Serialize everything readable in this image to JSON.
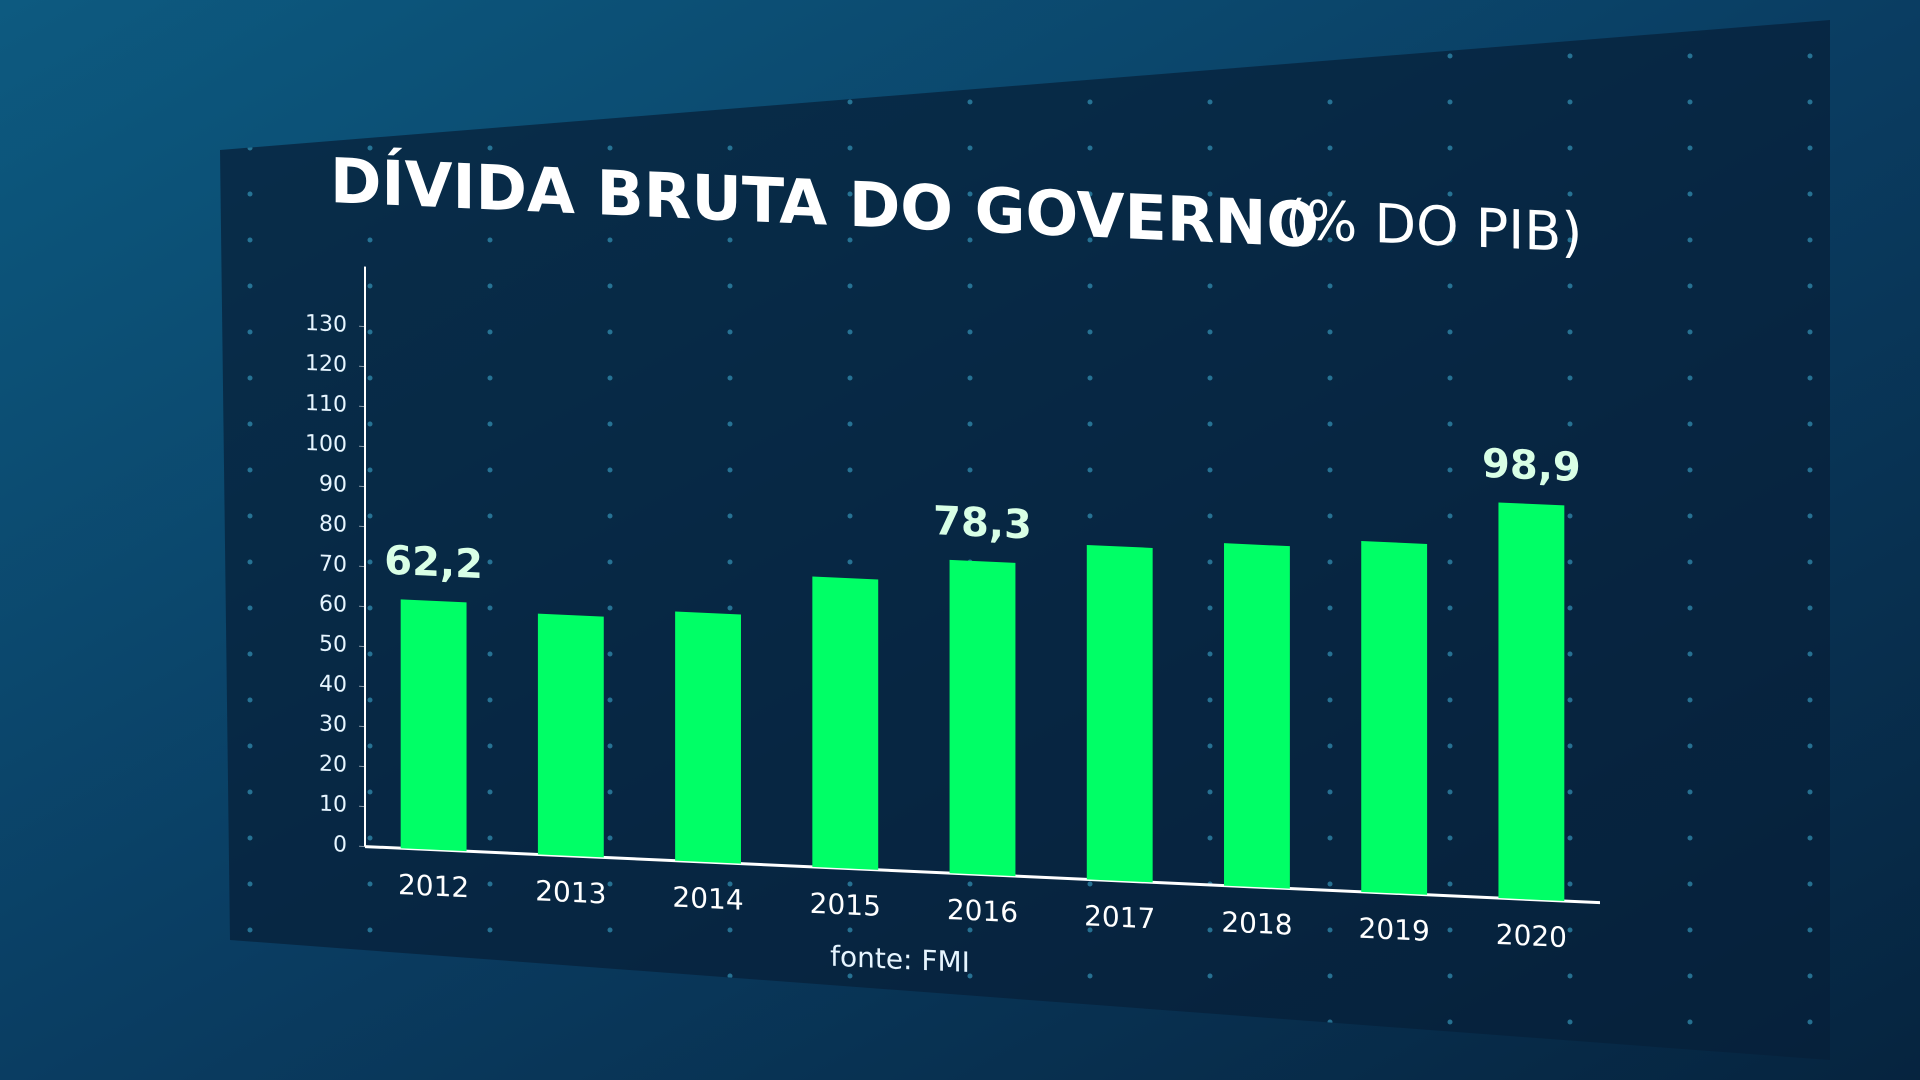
{
  "chart_data": {
    "type": "bar",
    "title": "DÍVIDA BRUTA DO GOVERNO",
    "subtitle": "(% DO PIB)",
    "source": "fonte: FMI",
    "categories": [
      "2012",
      "2013",
      "2014",
      "2015",
      "2016",
      "2017",
      "2018",
      "2019",
      "2020"
    ],
    "values": [
      62.2,
      60.2,
      62.3,
      72.6,
      78.3,
      83.6,
      85.6,
      87.7,
      98.9
    ],
    "value_labels": [
      "62,2",
      null,
      null,
      null,
      "78,3",
      null,
      null,
      null,
      "98,9"
    ],
    "color": "#00ff66",
    "ylim": [
      0,
      145
    ],
    "yticks": [
      0,
      10,
      20,
      30,
      40,
      50,
      60,
      70,
      80,
      90,
      100,
      110,
      120,
      130
    ]
  }
}
